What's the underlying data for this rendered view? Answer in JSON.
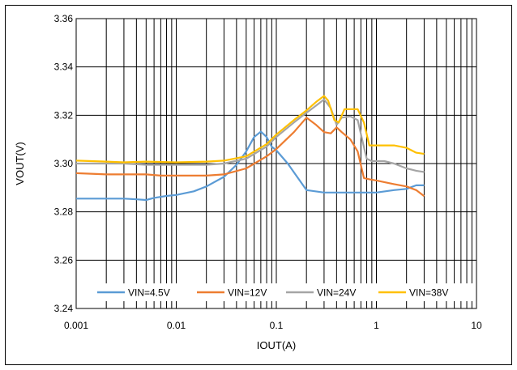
{
  "chart_data": {
    "type": "line",
    "xlabel": "IOUT(A)",
    "ylabel": "VOUT(V)",
    "xscale": "log",
    "xlim": [
      0.001,
      10
    ],
    "ylim": [
      3.24,
      3.36
    ],
    "grid": "on",
    "legend_position": "bottom-inside",
    "x_tick_labels": [
      "0.001",
      "0.01",
      "0.1",
      "1",
      "10"
    ],
    "y_tick_labels": [
      "3.24",
      "3.26",
      "3.28",
      "3.30",
      "3.32",
      "3.34",
      "3.36"
    ],
    "series": [
      {
        "name": "VIN=4.5V",
        "color": "#5B9BD5",
        "points": [
          [
            0.001,
            3.2855
          ],
          [
            0.002,
            3.2855
          ],
          [
            0.003,
            3.2855
          ],
          [
            0.004,
            3.2852
          ],
          [
            0.005,
            3.2849
          ],
          [
            0.006,
            3.2858
          ],
          [
            0.008,
            3.2866
          ],
          [
            0.01,
            3.287
          ],
          [
            0.015,
            3.2885
          ],
          [
            0.02,
            3.2905
          ],
          [
            0.03,
            3.2945
          ],
          [
            0.04,
            3.2995
          ],
          [
            0.05,
            3.305
          ],
          [
            0.06,
            3.311
          ],
          [
            0.07,
            3.3132
          ],
          [
            0.08,
            3.311
          ],
          [
            0.09,
            3.307
          ],
          [
            0.1,
            3.3055
          ],
          [
            0.13,
            3.3
          ],
          [
            0.2,
            3.289
          ],
          [
            0.3,
            3.288
          ],
          [
            0.5,
            3.288
          ],
          [
            0.7,
            3.288
          ],
          [
            1.0,
            3.288
          ],
          [
            1.5,
            3.289
          ],
          [
            2.0,
            3.2895
          ],
          [
            2.5,
            3.291
          ],
          [
            3.0,
            3.291
          ]
        ]
      },
      {
        "name": "VIN=12V",
        "color": "#ED7D31",
        "points": [
          [
            0.001,
            3.296
          ],
          [
            0.002,
            3.2955
          ],
          [
            0.003,
            3.2955
          ],
          [
            0.005,
            3.2955
          ],
          [
            0.007,
            3.295
          ],
          [
            0.01,
            3.295
          ],
          [
            0.02,
            3.295
          ],
          [
            0.03,
            3.2955
          ],
          [
            0.05,
            3.298
          ],
          [
            0.08,
            3.303
          ],
          [
            0.1,
            3.306
          ],
          [
            0.15,
            3.313
          ],
          [
            0.2,
            3.319
          ],
          [
            0.25,
            3.316
          ],
          [
            0.3,
            3.313
          ],
          [
            0.35,
            3.3125
          ],
          [
            0.4,
            3.315
          ],
          [
            0.45,
            3.313
          ],
          [
            0.55,
            3.31
          ],
          [
            0.65,
            3.305
          ],
          [
            0.75,
            3.294
          ],
          [
            0.85,
            3.2935
          ],
          [
            1.0,
            3.293
          ],
          [
            1.5,
            3.2915
          ],
          [
            2.0,
            3.2905
          ],
          [
            2.5,
            3.289
          ],
          [
            3.0,
            3.2865
          ]
        ]
      },
      {
        "name": "VIN=24V",
        "color": "#A5A5A5",
        "points": [
          [
            0.001,
            3.3
          ],
          [
            0.002,
            3.3
          ],
          [
            0.003,
            3.3
          ],
          [
            0.005,
            3.2995
          ],
          [
            0.01,
            3.2995
          ],
          [
            0.02,
            3.2995
          ],
          [
            0.03,
            3.3
          ],
          [
            0.05,
            3.302
          ],
          [
            0.08,
            3.307
          ],
          [
            0.1,
            3.311
          ],
          [
            0.15,
            3.317
          ],
          [
            0.2,
            3.321
          ],
          [
            0.25,
            3.324
          ],
          [
            0.3,
            3.3265
          ],
          [
            0.35,
            3.323
          ],
          [
            0.4,
            3.316
          ],
          [
            0.45,
            3.319
          ],
          [
            0.55,
            3.3195
          ],
          [
            0.65,
            3.318
          ],
          [
            0.72,
            3.31
          ],
          [
            0.8,
            3.302
          ],
          [
            0.9,
            3.301
          ],
          [
            1.2,
            3.301
          ],
          [
            1.5,
            3.3
          ],
          [
            2.0,
            3.298
          ],
          [
            2.5,
            3.297
          ],
          [
            3.0,
            3.2965
          ]
        ]
      },
      {
        "name": "VIN=38V",
        "color": "#FFC000",
        "points": [
          [
            0.001,
            3.3012
          ],
          [
            0.002,
            3.3008
          ],
          [
            0.003,
            3.3005
          ],
          [
            0.005,
            3.3008
          ],
          [
            0.01,
            3.3005
          ],
          [
            0.02,
            3.3008
          ],
          [
            0.03,
            3.3012
          ],
          [
            0.05,
            3.303
          ],
          [
            0.08,
            3.308
          ],
          [
            0.1,
            3.312
          ],
          [
            0.15,
            3.318
          ],
          [
            0.2,
            3.322
          ],
          [
            0.25,
            3.3255
          ],
          [
            0.3,
            3.328
          ],
          [
            0.33,
            3.326
          ],
          [
            0.38,
            3.318
          ],
          [
            0.42,
            3.317
          ],
          [
            0.48,
            3.3225
          ],
          [
            0.55,
            3.3225
          ],
          [
            0.65,
            3.3225
          ],
          [
            0.75,
            3.317
          ],
          [
            0.85,
            3.3075
          ],
          [
            1.0,
            3.3075
          ],
          [
            1.5,
            3.3075
          ],
          [
            2.0,
            3.3065
          ],
          [
            2.5,
            3.3045
          ],
          [
            3.0,
            3.304
          ]
        ]
      }
    ]
  }
}
